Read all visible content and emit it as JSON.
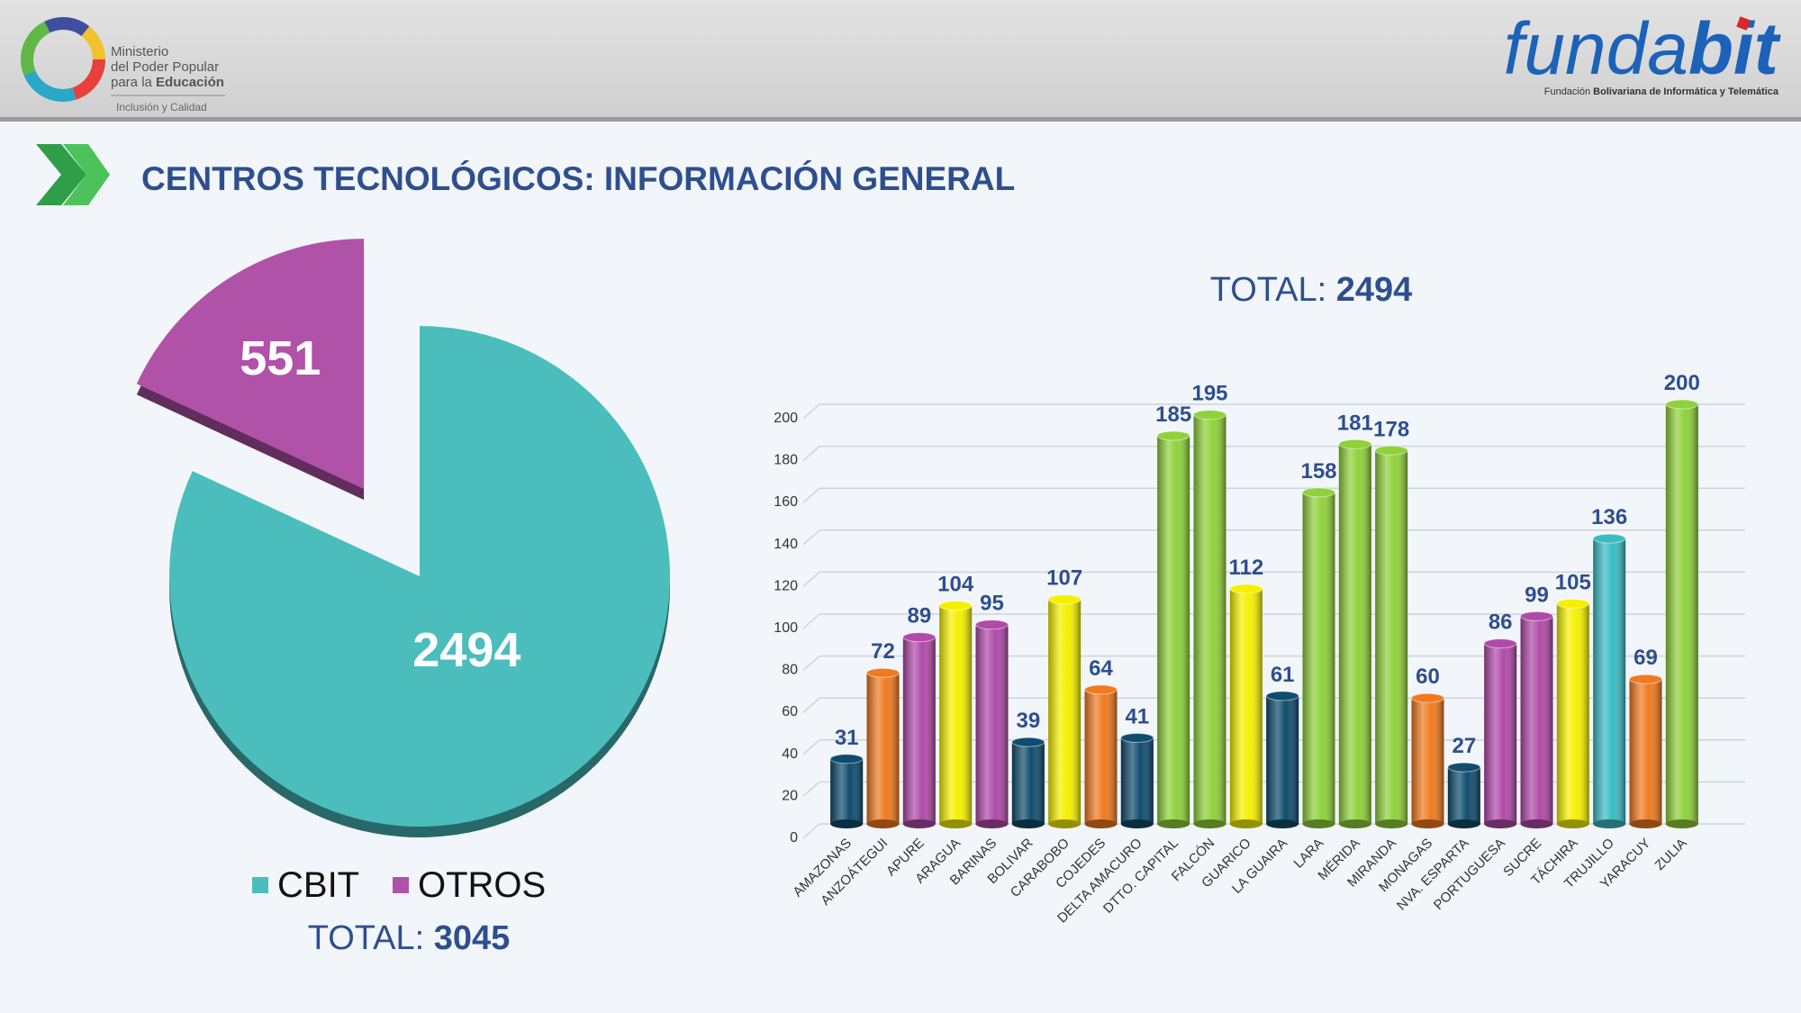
{
  "header": {
    "ministry_1": "Ministerio",
    "ministry_2": "del Poder Popular",
    "ministry_3": "para la",
    "ministry_4": "Educación",
    "ministry_motto": "Inclusión y Calidad",
    "brand_1": "funda",
    "brand_2": "bit",
    "brand_sub_1": "Fundación",
    "brand_sub_2": "Bolivariana de Informática y Telemática"
  },
  "title": "CENTROS TECNOLÓGICOS: INFORMACIÓN GENERAL",
  "chart_data": [
    {
      "type": "pie",
      "categories": [
        "CBIT",
        "OTROS"
      ],
      "values": [
        2494,
        551
      ],
      "colors": [
        "#4bbdbd",
        "#b052a8"
      ],
      "total_label": "TOTAL:",
      "total": 3045
    },
    {
      "type": "bar",
      "title_label": "TOTAL:",
      "title_total": 2494,
      "categories": [
        "AMAZONAS",
        "ANZOÁTEGUI",
        "APURE",
        "ARAGUA",
        "BARINAS",
        "BOLIVAR",
        "CARABOBO",
        "COJEDES",
        "DELTA AMACURO",
        "DTTO. CAPITAL",
        "FALCÓN",
        "GUARICO",
        "LA GUAIRA",
        "LARA",
        "MÉRIDA",
        "MIRANDA",
        "MONAGAS",
        "NVA. ESPARTA",
        "PORTUGUESA",
        "SUCRE",
        "TÁCHIRA",
        "TRUJILLO",
        "YARACUY",
        "ZULIA"
      ],
      "values": [
        31,
        72,
        89,
        104,
        95,
        39,
        107,
        64,
        41,
        185,
        195,
        112,
        61,
        158,
        181,
        178,
        60,
        27,
        86,
        99,
        105,
        136,
        69,
        200
      ],
      "colors": [
        "#0f4c6e",
        "#f07a20",
        "#b04aa8",
        "#f5f000",
        "#b04aa8",
        "#0f4c6e",
        "#f5f000",
        "#f07a20",
        "#0f4c6e",
        "#8fd13a",
        "#8fd13a",
        "#f5f000",
        "#0f4c6e",
        "#8fd13a",
        "#8fd13a",
        "#8fd13a",
        "#f07a20",
        "#0f4c6e",
        "#b04aa8",
        "#b04aa8",
        "#f5f000",
        "#3bbcc4",
        "#f07a20",
        "#8fd13a"
      ],
      "ylim": [
        0,
        200
      ],
      "yticks": [
        0,
        20,
        40,
        60,
        80,
        100,
        120,
        140,
        160,
        180,
        200
      ],
      "grid": true
    }
  ]
}
